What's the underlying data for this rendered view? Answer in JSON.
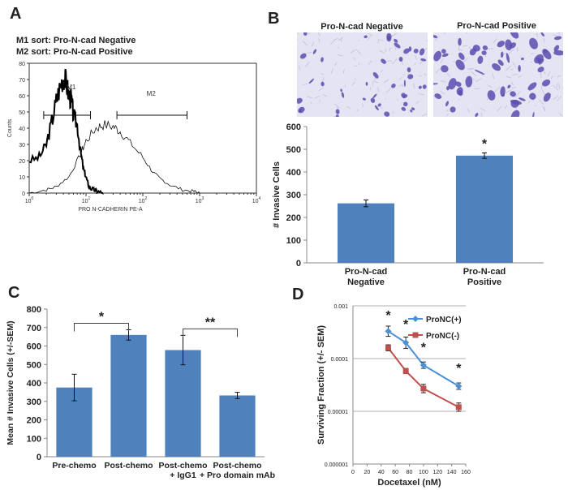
{
  "panels": {
    "A": "A",
    "B": "B",
    "C": "C",
    "D": "D"
  },
  "colors": {
    "bar": "#4f81bd",
    "pos_line": "#4a90d9",
    "neg_line": "#c0504d",
    "cell": "#5b4db0",
    "micro_bg": "#e4e4f2"
  },
  "panel_a": {
    "sort_notes": [
      "M1 sort: Pro-N-cad Negative",
      "M2 sort: Pro-N-cad Positive"
    ],
    "gate_m1": "M1",
    "gate_m2": "M2",
    "xlabel": "PRO N-CADHERIN PE-A",
    "ylabel": "Counts",
    "x_ticks": [
      {
        "base": "10",
        "exp": "0"
      },
      {
        "base": "10",
        "exp": "1"
      },
      {
        "base": "10",
        "exp": "2"
      },
      {
        "base": "10",
        "exp": "3"
      },
      {
        "base": "10",
        "exp": "4"
      }
    ],
    "y_ticks": [
      "0",
      "10",
      "20",
      "30",
      "40",
      "50",
      "60",
      "70",
      "80"
    ]
  },
  "panel_b": {
    "micro_titles": [
      "Pro-N-cad Negative",
      "Pro-N-cad Positive"
    ]
  },
  "chart_data": [
    {
      "id": "A",
      "type": "line",
      "title": "",
      "xlabel": "PRO N-CADHERIN PE-A",
      "ylabel": "Counts",
      "xscale": "log",
      "xlim": [
        1,
        10000
      ],
      "ylim": [
        0,
        80
      ],
      "series": [
        {
          "name": "Pro-N-cad Negative (bold)",
          "x": [
            1,
            1.5,
            2,
            2.5,
            3,
            3.5,
            4,
            4.5,
            5,
            5.5,
            6,
            7,
            8,
            9,
            10,
            11,
            12,
            14,
            16,
            20
          ],
          "y": [
            20,
            22,
            30,
            44,
            57,
            66,
            72,
            68,
            60,
            58,
            48,
            42,
            26,
            15,
            10,
            5,
            3,
            2,
            1,
            0
          ]
        },
        {
          "name": "Pro-N-cad Positive (thin)",
          "x": [
            1,
            2,
            3,
            5,
            8,
            10,
            15,
            20,
            30,
            40,
            60,
            100,
            150,
            200,
            300,
            500,
            800,
            1000
          ],
          "y": [
            0,
            2,
            4,
            10,
            24,
            32,
            40,
            42,
            41,
            38,
            31,
            22,
            13,
            9,
            5,
            2,
            1,
            0
          ]
        }
      ],
      "gates": [
        {
          "name": "M1",
          "range": [
            1.8,
            12
          ]
        },
        {
          "name": "M2",
          "range": [
            35,
            600
          ]
        }
      ]
    },
    {
      "id": "B",
      "type": "bar",
      "categories": [
        [
          "Pro-N-cad",
          "Negative"
        ],
        [
          "Pro-N-cad",
          "Positive"
        ]
      ],
      "values": [
        262,
        472
      ],
      "errors": [
        15,
        12
      ],
      "significance": [
        "",
        "*"
      ],
      "title": "",
      "xlabel": "",
      "ylabel": "# Invasive Cells",
      "ylim": [
        0,
        600
      ],
      "yticks": [
        0,
        100,
        200,
        300,
        400,
        500,
        600
      ]
    },
    {
      "id": "C",
      "type": "bar",
      "categories": [
        [
          "Pre-chemo"
        ],
        [
          "Post-chemo"
        ],
        [
          "Post-chemo",
          "+ IgG1"
        ],
        [
          "Post-chemo",
          "+ Pro domain mAb"
        ]
      ],
      "values": [
        375,
        660,
        578,
        332
      ],
      "errors": [
        72,
        28,
        80,
        17
      ],
      "brackets": [
        {
          "from": 0,
          "to": 1,
          "label": "*"
        },
        {
          "from": 2,
          "to": 3,
          "label": "**"
        }
      ],
      "title": "",
      "xlabel": "",
      "ylabel": "Mean # Invasive Cells (+/-SEM)",
      "ylim": [
        0,
        800
      ],
      "yticks": [
        0,
        100,
        200,
        300,
        400,
        500,
        600,
        700,
        800
      ]
    },
    {
      "id": "D",
      "type": "line",
      "yscale": "log",
      "title": "",
      "xlabel": "Docetaxel (nM)",
      "ylabel": "Surviving Fraction (+/- SEM)",
      "xlim": [
        0,
        160
      ],
      "xticks": [
        0,
        20,
        40,
        60,
        80,
        100,
        120,
        140,
        160
      ],
      "ylim": [
        1e-06,
        0.001
      ],
      "yticks": [
        "0.000001",
        "0.00001",
        "0.0001",
        "0.001"
      ],
      "legend": "top-right",
      "series": [
        {
          "name": "ProNC(+)",
          "x": [
            50,
            75,
            100,
            150
          ],
          "y": [
            0.00033,
            0.0002,
            7.5e-05,
            3e-05
          ]
        },
        {
          "name": "ProNC(-)",
          "x": [
            50,
            75,
            100,
            150
          ],
          "y": [
            0.00016,
            5.8e-05,
            2.7e-05,
            1.2e-05
          ]
        }
      ],
      "significance": [
        {
          "x": 50,
          "label": "*"
        },
        {
          "x": 75,
          "label": "*"
        },
        {
          "x": 100,
          "label": "*"
        },
        {
          "x": 150,
          "label": "*"
        }
      ]
    }
  ]
}
